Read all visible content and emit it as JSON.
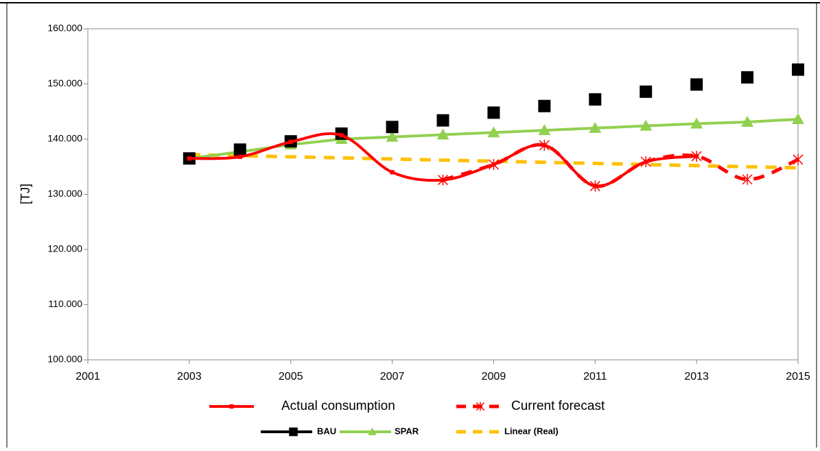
{
  "chart_data": {
    "type": "line",
    "y_label": "[TJ]",
    "xlim": [
      2001,
      2015
    ],
    "xticks": [
      2001,
      2003,
      2005,
      2007,
      2009,
      2011,
      2013,
      2015
    ],
    "ylim": [
      100000,
      160000
    ],
    "yticks": [
      {
        "value": 100000,
        "label": "100.000"
      },
      {
        "value": 110000,
        "label": "110.000"
      },
      {
        "value": 120000,
        "label": "120.000"
      },
      {
        "value": 130000,
        "label": "130.000"
      },
      {
        "value": 140000,
        "label": "140.000"
      },
      {
        "value": 150000,
        "label": "150.000"
      },
      {
        "value": 160000,
        "label": "160.000"
      }
    ],
    "grid": false,
    "x": [
      2003,
      2004,
      2005,
      2006,
      2007,
      2008,
      2009,
      2010,
      2011,
      2012,
      2013,
      2014,
      2015
    ],
    "series": [
      {
        "name": "Actual consumption",
        "color": "#ff0000",
        "line": "solid",
        "marker": "square",
        "smooth": true,
        "values": [
          136500,
          136800,
          139500,
          140700,
          134000,
          132600,
          135400,
          138900,
          131500,
          135900,
          136900,
          null,
          null
        ]
      },
      {
        "name": "Current forecast",
        "color": "#ff0000",
        "line": "dashed",
        "marker": "star",
        "smooth": true,
        "values": [
          null,
          null,
          null,
          null,
          null,
          132600,
          135400,
          138900,
          131500,
          135900,
          136900,
          132700,
          136300
        ]
      },
      {
        "name": "BAU",
        "color": "#000000",
        "line": "none",
        "marker": "square",
        "smooth": false,
        "values": [
          136500,
          138100,
          139600,
          141000,
          142200,
          143400,
          144800,
          146000,
          147200,
          148600,
          149900,
          151200,
          152600
        ]
      },
      {
        "name": "SPAR",
        "color": "#92d050",
        "line": "solid",
        "marker": "triangle",
        "smooth": false,
        "values": [
          136500,
          137700,
          139000,
          140000,
          140400,
          140800,
          141200,
          141600,
          142000,
          142400,
          142800,
          143100,
          143600
        ]
      },
      {
        "name": "Linear (Real)",
        "color": "#ffc000",
        "line": "dashed",
        "marker": "none",
        "smooth": false,
        "values": [
          137200,
          137000,
          136800,
          136600,
          136400,
          136200,
          136000,
          135800,
          135600,
          135400,
          135200,
          135000,
          134800
        ]
      }
    ]
  }
}
